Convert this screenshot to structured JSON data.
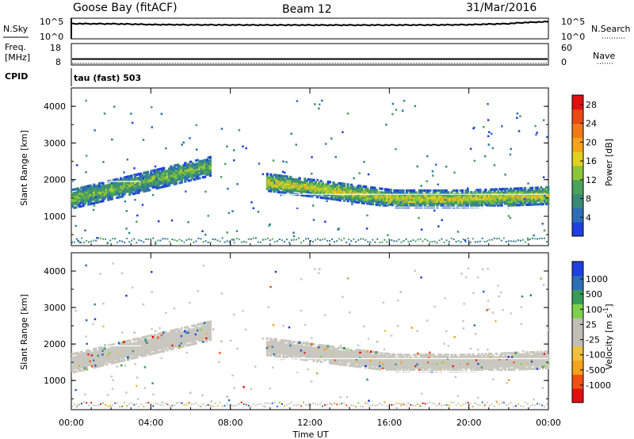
{
  "header": {
    "station": "Goose Bay (fitACF)",
    "beam": "Beam 12",
    "date": "31/Mar/2016"
  },
  "labels": {
    "nsky": "N.Sky",
    "nsearch": "N.Search",
    "freq_line1": "Freq.",
    "freq_line2": "[MHz]",
    "nave": "Nave",
    "cpid": "CPID",
    "cpid_value": "tau (fast) 503"
  },
  "noise_axis": {
    "left_top": "10^5",
    "left_bottom": "10^0",
    "right_top": "10^5",
    "right_bottom": "10^0"
  },
  "freq_axis": {
    "left_top": "18",
    "left_bottom": "8",
    "right_top": "60",
    "right_bottom": "0"
  },
  "colors": {
    "power_scale": [
      "#1f3fe0",
      "#2c6fb8",
      "#3a8a78",
      "#4aa35a",
      "#8cc53c",
      "#e0d020",
      "#f5a21c",
      "#f07a18",
      "#e84a14",
      "#e01010"
    ],
    "velocity_scale": [
      "#e01010",
      "#f05014",
      "#f5a21c",
      "#f0c040",
      "#bebeb4",
      "#bebeb4",
      "#7fd04c",
      "#3a9a58",
      "#2c6fb8",
      "#1f3fe0"
    ],
    "band_grey": "#c8c8c0"
  },
  "chart_data": [
    {
      "type": "line",
      "title": "N.Sky / N.Search",
      "yscale": "log",
      "ylim": [
        1,
        100000
      ],
      "x_hours": [
        0,
        2,
        4,
        6,
        8,
        10,
        12,
        14,
        16,
        18,
        20,
        22,
        24
      ],
      "series": [
        {
          "name": "N.Sky",
          "values": [
            6000,
            5500,
            3500,
            3000,
            2800,
            2600,
            2600,
            2500,
            2600,
            2700,
            3200,
            6000,
            20000
          ]
        }
      ]
    },
    {
      "type": "line",
      "title": "Freq. / Nave",
      "ylim": [
        8,
        18
      ],
      "x_hours": [
        0,
        24
      ],
      "series": [
        {
          "name": "Freq.",
          "values": [
            10.5,
            10.5
          ]
        }
      ]
    },
    {
      "type": "heatmap",
      "ylabel": "Slant Range [km]",
      "xlabel": "Time UT",
      "x_ticks": [
        "00:00",
        "04:00",
        "08:00",
        "12:00",
        "16:00",
        "20:00",
        "00:00"
      ],
      "x_range_hours": [
        0,
        24
      ],
      "y_ticks": [
        1000,
        2000,
        3000,
        4000
      ],
      "ylim": [
        200,
        4500
      ],
      "colorbar": {
        "label": "Power [dB]",
        "ticks": [
          "4",
          "8",
          "12",
          "16",
          "20",
          "24",
          "28"
        ],
        "range": [
          0,
          30
        ]
      },
      "echo_bands": [
        {
          "t_start": 0,
          "t_end": 7,
          "center_start": 1450,
          "center_end": 2350,
          "half_width": 260,
          "level": 13
        },
        {
          "t_start": 9.8,
          "t_end": 24,
          "center_start": 1900,
          "center_end": 1450,
          "half_width": 230,
          "level": 17
        }
      ]
    },
    {
      "type": "heatmap",
      "ylabel": "Slant Range [km]",
      "xlabel": "Time UT",
      "x_ticks": [
        "00:00",
        "04:00",
        "08:00",
        "12:00",
        "16:00",
        "20:00",
        "00:00"
      ],
      "x_range_hours": [
        0,
        24
      ],
      "y_ticks": [
        1000,
        2000,
        3000,
        4000
      ],
      "ylim": [
        200,
        4500
      ],
      "colorbar": {
        "label": "Velocity [m s^-1]",
        "ticks": [
          "1000",
          "500",
          "100",
          "25",
          "-25",
          "-100",
          "-500",
          "-1000"
        ]
      }
    }
  ]
}
